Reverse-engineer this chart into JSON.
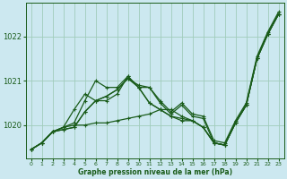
{
  "title": "Graphe pression niveau de la mer (hPa)",
  "background_color": "#cce8f0",
  "grid_color": "#a0ccbb",
  "line_color": "#1a5c1a",
  "xlim": [
    -0.5,
    23.5
  ],
  "ylim": [
    1019.25,
    1022.75
  ],
  "yticks": [
    1020,
    1021,
    1022
  ],
  "xticks": [
    0,
    1,
    2,
    3,
    4,
    5,
    6,
    7,
    8,
    9,
    10,
    11,
    12,
    13,
    14,
    15,
    16,
    17,
    18,
    19,
    20,
    21,
    22,
    23
  ],
  "series": [
    [
      1019.45,
      1019.6,
      1019.85,
      1019.9,
      1019.95,
      1020.3,
      1020.55,
      1020.65,
      1020.8,
      1021.05,
      1020.9,
      1020.85,
      1020.55,
      1020.3,
      1020.5,
      1020.25,
      1020.2,
      1019.65,
      1019.6,
      1020.1,
      1020.5,
      1021.55,
      1022.1,
      1022.55
    ],
    [
      1019.45,
      1019.6,
      1019.85,
      1019.9,
      1019.95,
      1020.3,
      1020.55,
      1020.65,
      1020.8,
      1021.05,
      1020.85,
      1020.85,
      1020.5,
      1020.25,
      1020.45,
      1020.2,
      1020.15,
      1019.6,
      1019.55,
      1020.05,
      1020.45,
      1021.5,
      1022.05,
      1022.5
    ],
    [
      1019.45,
      1019.6,
      1019.85,
      1019.95,
      1020.35,
      1020.7,
      1020.55,
      1020.55,
      1020.7,
      1021.1,
      1020.85,
      1020.5,
      1020.35,
      1020.2,
      1020.15,
      1020.1,
      1019.95,
      1019.6,
      1019.55,
      1020.05,
      1020.45,
      1021.5,
      1022.05,
      1022.5
    ],
    [
      1019.45,
      1019.6,
      1019.85,
      1019.95,
      1020.05,
      1020.55,
      1021.0,
      1020.85,
      1020.85,
      1021.1,
      1020.85,
      1020.5,
      1020.35,
      1020.2,
      1020.1,
      1020.1,
      1019.95,
      1019.6,
      1019.55,
      1020.05,
      1020.45,
      1021.5,
      1022.05,
      1022.5
    ],
    [
      1019.45,
      1019.6,
      1019.85,
      1019.95,
      1020.0,
      1020.0,
      1020.05,
      1020.05,
      1020.1,
      1020.15,
      1020.2,
      1020.25,
      1020.35,
      1020.35,
      1020.2,
      1020.1,
      1019.95,
      1019.6,
      1019.55,
      1020.05,
      1020.45,
      1021.5,
      1022.05,
      1022.5
    ]
  ]
}
